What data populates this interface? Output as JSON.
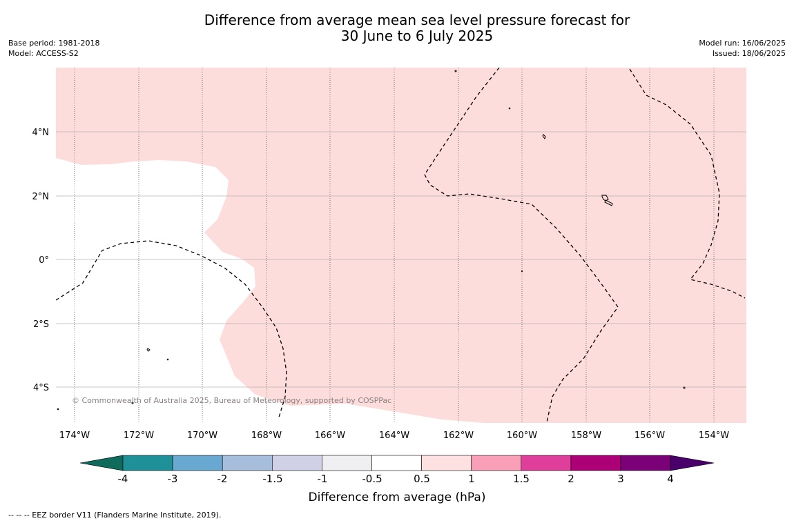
{
  "title": {
    "line1": "Difference from average mean sea level pressure forecast for",
    "line2": "30 June to 6 July 2025"
  },
  "meta_left": {
    "base_period": "Base period: 1981-2018",
    "model": "Model: ACCESS-S2"
  },
  "meta_right": {
    "model_run": "Model run: 16/06/2025",
    "issued": "Issued: 18/06/2025"
  },
  "map": {
    "lon_labels": [
      "174°W",
      "172°W",
      "170°W",
      "168°W",
      "166°W",
      "164°W",
      "162°W",
      "160°W",
      "158°W",
      "156°W",
      "154°W"
    ],
    "lat_labels": [
      "4°N",
      "2°N",
      "0°",
      "2°S",
      "4°S"
    ],
    "copyright": "© Commonwealth of Australia 2025, Bureau of Meteorology, supported by COSPPac",
    "anomaly_fill_color": "#fddcdc",
    "anomaly_fill_class": "0.5 to 1 hPa"
  },
  "colorbar": {
    "tick_labels": [
      "-4",
      "-3",
      "-2",
      "-1.5",
      "-1",
      "-0.5",
      "0.5",
      "1",
      "1.5",
      "2",
      "3",
      "4"
    ],
    "colors": [
      "#0f6b5c",
      "#1e9198",
      "#69a9d1",
      "#a6bddb",
      "#d0d1e6",
      "#efeff2",
      "#ffffff",
      "#fde0e0",
      "#f99fb8",
      "#df3e9b",
      "#ad0077",
      "#7a0177",
      "#49006a"
    ],
    "label": "Difference from average (hPa)"
  },
  "footer": "--  --  -- EEZ border V11 (Flanders Marine Institute, 2019)."
}
